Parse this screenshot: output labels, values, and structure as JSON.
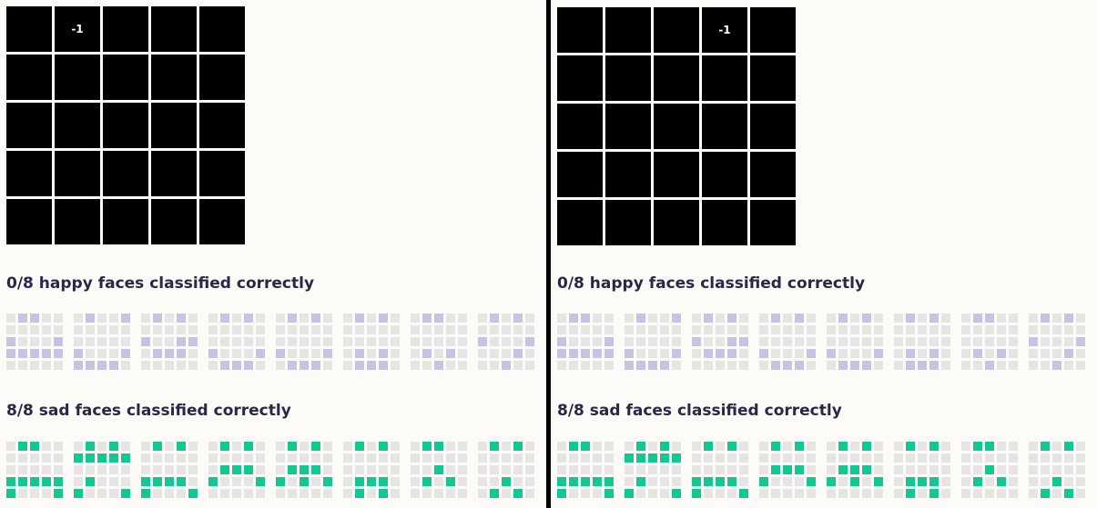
{
  "colors": {
    "weight_cell": "#000000",
    "happy_on": "#c7c3e2",
    "sad_on": "#13c890",
    "pixel_off": "#e6e5e3",
    "heading_text": "#2a2747"
  },
  "panels": [
    {
      "weights": [
        "",
        "-1",
        "",
        "",
        "",
        "",
        "",
        "",
        "",
        "",
        "",
        "",
        "",
        "",
        "",
        "",
        "",
        "",
        "",
        "",
        "",
        "",
        "",
        "",
        ""
      ],
      "happy_heading": "0/8 happy faces classified correctly",
      "sad_heading": "8/8 sad faces classified correctly"
    },
    {
      "weights": [
        "",
        "",
        "",
        "-1",
        "",
        "",
        "",
        "",
        "",
        "",
        "",
        "",
        "",
        "",
        "",
        "",
        "",
        "",
        "",
        "",
        "",
        "",
        "",
        "",
        ""
      ],
      "happy_heading": "0/8 happy faces classified correctly",
      "sad_heading": "8/8 sad faces classified correctly"
    }
  ],
  "happy_faces": [
    [
      "0110000000100011111100000",
      "0100100000000001000111110",
      "0101000000100110111000000",
      "0101000000000001000101110",
      "0101000000000001000101110",
      "0101000000000000101001110",
      "0110000000000000101000100",
      "0101000000100010001000100"
    ],
    [
      "0110000000100011111100000",
      "0100100000000001000111110",
      "0101000000100110111000000",
      "0101000000000001000101110",
      "0101000000000001000101110",
      "0101000000000000101001110",
      "0110000000000000101000100",
      "0101000000100010001000100"
    ]
  ],
  "sad_faces": [
    [
      "0110000000000001111110001",
      "0101011111000000100010001",
      "0101000000000001111010001",
      "0101000000011101000100000",
      "0101000000011101010100000",
      "0101000000000000111001010",
      "0110000000001000101000000",
      "0101000000000000010001010"
    ],
    [
      "0110000000000001111110001",
      "0101011111000000100010001",
      "0101000000000001111010001",
      "0101000000011101000100000",
      "0101000000011101010100000",
      "0101000000000000111001010",
      "0110000000001000101000000",
      "0101000000000000010001010"
    ]
  ]
}
